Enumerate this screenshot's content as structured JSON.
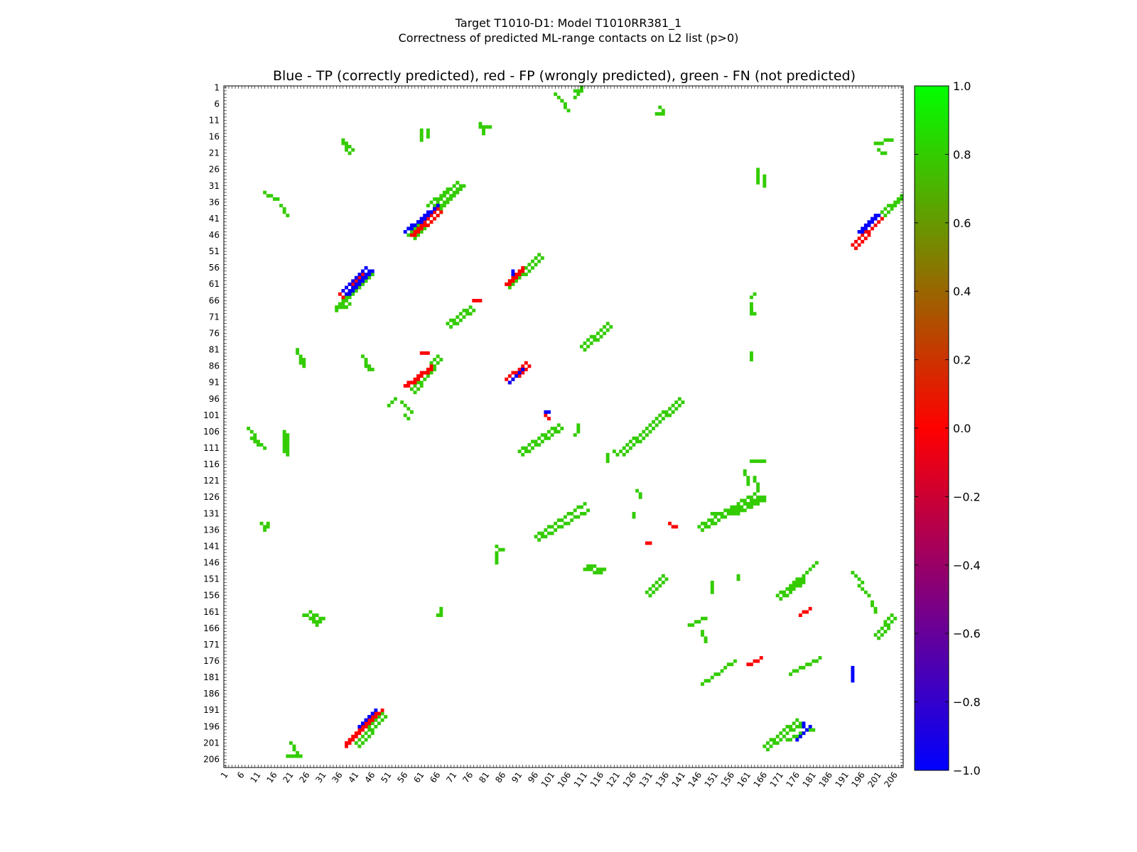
{
  "chart_data": {
    "type": "heatmap",
    "title_line1": "Target T1010-D1: Model T1010RR381_1",
    "title_line2": "Correctness of predicted ML-range contacts on L2 list (p>0)",
    "subtitle": "Blue - TP (correctly predicted), red - FP (wrongly predicted), green - FN (not predicted)",
    "xlabel": "",
    "ylabel": "",
    "residue_range": [
      1,
      208
    ],
    "x_ticks": [
      "1",
      "6",
      "11",
      "16",
      "21",
      "26",
      "31",
      "36",
      "41",
      "46",
      "51",
      "56",
      "61",
      "66",
      "71",
      "76",
      "81",
      "86",
      "91",
      "96",
      "101",
      "106",
      "111",
      "116",
      "121",
      "126",
      "131",
      "136",
      "141",
      "146",
      "151",
      "156",
      "161",
      "166",
      "171",
      "176",
      "181",
      "186",
      "191",
      "196",
      "201",
      "206"
    ],
    "y_ticks": [
      "1",
      "6",
      "11",
      "16",
      "21",
      "26",
      "31",
      "36",
      "41",
      "46",
      "51",
      "56",
      "61",
      "66",
      "71",
      "76",
      "81",
      "86",
      "91",
      "96",
      "101",
      "106",
      "111",
      "116",
      "121",
      "126",
      "131",
      "136",
      "141",
      "146",
      "151",
      "156",
      "161",
      "166",
      "171",
      "176",
      "181",
      "186",
      "191",
      "196",
      "201",
      "206"
    ],
    "colorbar": {
      "range": [
        -1.0,
        1.0
      ],
      "ticks": [
        "1.0",
        "0.8",
        "0.6",
        "0.4",
        "0.2",
        "0.0",
        "−0.2",
        "−0.4",
        "−0.6",
        "−0.8",
        "−1.0"
      ],
      "stops": [
        "#0000ff",
        "#ff0000",
        "#00ff00"
      ]
    },
    "colors": {
      "TP": "#0000ff",
      "FP": "#ff0000",
      "FN": "#33cc00"
    },
    "segments": {
      "TP": [
        [
          56,
          45,
          66,
          37
        ],
        [
          57,
          44,
          65,
          38
        ],
        [
          58,
          44,
          64,
          39
        ],
        [
          44,
          56,
          37,
          63
        ],
        [
          45,
          57,
          38,
          64
        ],
        [
          46,
          57,
          39,
          64
        ],
        [
          88,
          91,
          92,
          87
        ],
        [
          99,
          100,
          100,
          100
        ],
        [
          195,
          45,
          200,
          40
        ],
        [
          196,
          45,
          201,
          40
        ],
        [
          43,
          195,
          47,
          191
        ],
        [
          42,
          196,
          46,
          192
        ],
        [
          176,
          200,
          180,
          196
        ],
        [
          89,
          57,
          89,
          58
        ],
        [
          178,
          195,
          178,
          196
        ],
        [
          193,
          178,
          193,
          182
        ]
      ],
      "FP": [
        [
          58,
          46,
          66,
          38
        ],
        [
          59,
          46,
          67,
          39
        ],
        [
          43,
          58,
          36,
          64
        ],
        [
          44,
          59,
          37,
          65
        ],
        [
          87,
          90,
          93,
          85
        ],
        [
          88,
          91,
          94,
          86
        ],
        [
          87,
          61,
          92,
          56
        ],
        [
          88,
          61,
          92,
          57
        ],
        [
          56,
          92,
          64,
          86
        ],
        [
          57,
          92,
          64,
          87
        ],
        [
          61,
          82,
          63,
          82
        ],
        [
          77,
          66,
          79,
          66
        ],
        [
          193,
          49,
          201,
          40
        ],
        [
          194,
          50,
          202,
          41
        ],
        [
          38,
          201,
          49,
          191
        ],
        [
          38,
          202,
          47,
          192
        ],
        [
          99,
          101,
          100,
          102
        ],
        [
          161,
          177,
          165,
          175
        ],
        [
          177,
          162,
          180,
          160
        ],
        [
          137,
          134,
          139,
          135
        ],
        [
          130,
          140,
          131,
          140
        ]
      ],
      "FN": [
        [
          57,
          46,
          72,
          30
        ],
        [
          58,
          46,
          73,
          31
        ],
        [
          59,
          47,
          74,
          31
        ],
        [
          63,
          37,
          72,
          30
        ],
        [
          69,
          73,
          76,
          68
        ],
        [
          70,
          74,
          77,
          69
        ],
        [
          45,
          57,
          35,
          68
        ],
        [
          46,
          58,
          35,
          69
        ],
        [
          87,
          61,
          97,
          52
        ],
        [
          88,
          62,
          98,
          53
        ],
        [
          58,
          93,
          66,
          83
        ],
        [
          59,
          94,
          67,
          84
        ],
        [
          122,
          112,
          140,
          96
        ],
        [
          123,
          113,
          141,
          97
        ],
        [
          91,
          112,
          103,
          104
        ],
        [
          92,
          113,
          104,
          105
        ],
        [
          110,
          80,
          118,
          73
        ],
        [
          111,
          81,
          119,
          74
        ],
        [
          96,
          138,
          111,
          128
        ],
        [
          97,
          139,
          112,
          130
        ],
        [
          146,
          135,
          163,
          125
        ],
        [
          147,
          136,
          164,
          126
        ],
        [
          130,
          155,
          135,
          150
        ],
        [
          131,
          156,
          136,
          151
        ],
        [
          170,
          156,
          178,
          151
        ],
        [
          171,
          157,
          178,
          152
        ],
        [
          201,
          40,
          209,
          33
        ],
        [
          202,
          41,
          209,
          34
        ],
        [
          41,
          201,
          49,
          192
        ],
        [
          42,
          202,
          50,
          193
        ],
        [
          156,
          130,
          166,
          126
        ],
        [
          157,
          131,
          166,
          127
        ],
        [
          166,
          202,
          176,
          194
        ],
        [
          167,
          203,
          177,
          195
        ],
        [
          200,
          168,
          205,
          162
        ],
        [
          201,
          169,
          206,
          163
        ],
        [
          174,
          180,
          183,
          175
        ],
        [
          147,
          183,
          157,
          176
        ],
        [
          172,
          155,
          182,
          146
        ],
        [
          108,
          2,
          110,
          1
        ],
        [
          108,
          4,
          110,
          2
        ],
        [
          13,
          33,
          17,
          35
        ],
        [
          37,
          17,
          40,
          20
        ],
        [
          19,
          106,
          19,
          112
        ],
        [
          20,
          107,
          20,
          113
        ],
        [
          8,
          105,
          12,
          110
        ],
        [
          9,
          108,
          13,
          111
        ],
        [
          112,
          147,
          117,
          148
        ],
        [
          111,
          148,
          116,
          149
        ],
        [
          18,
          37,
          20,
          40
        ],
        [
          37,
          18,
          39,
          21
        ],
        [
          61,
          14,
          61,
          17
        ],
        [
          63,
          14,
          63,
          16
        ],
        [
          80,
          13,
          82,
          13
        ],
        [
          79,
          12,
          80,
          15
        ],
        [
          35,
          68,
          38,
          68
        ],
        [
          37,
          68,
          39,
          67
        ],
        [
          12,
          134,
          13,
          136
        ],
        [
          14,
          134,
          14,
          135
        ],
        [
          25,
          162,
          30,
          164
        ],
        [
          27,
          161,
          31,
          163
        ],
        [
          27,
          163,
          29,
          165
        ],
        [
          21,
          201,
          23,
          205
        ],
        [
          20,
          205,
          24,
          205
        ],
        [
          173,
          200,
          178,
          198
        ],
        [
          176,
          196,
          181,
          197
        ],
        [
          200,
          18,
          205,
          17
        ],
        [
          201,
          20,
          203,
          21
        ],
        [
          164,
          26,
          164,
          30
        ],
        [
          166,
          28,
          166,
          31
        ],
        [
          143,
          165,
          148,
          163
        ],
        [
          147,
          167,
          148,
          170
        ],
        [
          67,
          160,
          67,
          161
        ],
        [
          66,
          162,
          67,
          162
        ],
        [
          109,
          104,
          109,
          106
        ],
        [
          108,
          107,
          108,
          107
        ],
        [
          162,
          115,
          166,
          115
        ],
        [
          133,
          9,
          135,
          9
        ],
        [
          134,
          7,
          135,
          8
        ],
        [
          102,
          3,
          104,
          5
        ],
        [
          104,
          5,
          106,
          8
        ],
        [
          150,
          131,
          152,
          131
        ],
        [
          162,
          65,
          163,
          64
        ],
        [
          162,
          69,
          163,
          70
        ],
        [
          118,
          113,
          118,
          115
        ],
        [
          120,
          112,
          121,
          113
        ],
        [
          23,
          81,
          24,
          85
        ],
        [
          25,
          84,
          25,
          86
        ],
        [
          84,
          141,
          86,
          142
        ],
        [
          84,
          143,
          84,
          146
        ],
        [
          150,
          152,
          150,
          155
        ],
        [
          158,
          150,
          158,
          151
        ],
        [
          193,
          149,
          196,
          152
        ],
        [
          195,
          153,
          198,
          156
        ],
        [
          199,
          158,
          200,
          161
        ],
        [
          127,
          124,
          128,
          126
        ],
        [
          126,
          131,
          126,
          132
        ],
        [
          43,
          83,
          45,
          87
        ],
        [
          44,
          86,
          46,
          87
        ],
        [
          51,
          98,
          53,
          96
        ],
        [
          55,
          97,
          58,
          100
        ],
        [
          56,
          101,
          57,
          102
        ],
        [
          163,
          120,
          164,
          124
        ],
        [
          160,
          118,
          161,
          122
        ],
        [
          162,
          82,
          162,
          84
        ],
        [
          162,
          67,
          162,
          70
        ]
      ]
    }
  }
}
